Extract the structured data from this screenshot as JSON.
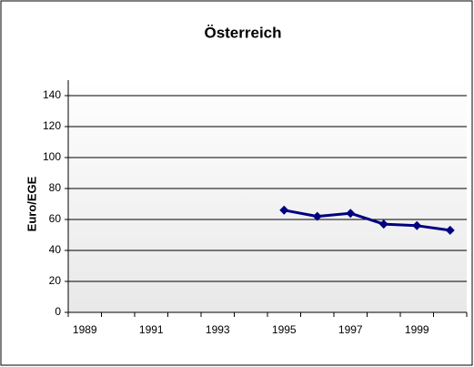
{
  "chart_data": {
    "type": "line",
    "title": "Österreich",
    "y_label": "Euro/EGE",
    "categories": [
      "1989",
      null,
      "1991",
      null,
      "1993",
      null,
      "1995",
      null,
      "1997",
      null,
      "1999",
      null
    ],
    "series": [
      {
        "name": "Österreich",
        "color": "#000080",
        "values": [
          null,
          null,
          null,
          null,
          null,
          null,
          66,
          62,
          64,
          57,
          56,
          53
        ]
      }
    ],
    "ylim": [
      0,
      150
    ],
    "yticks": [
      0,
      20,
      40,
      60,
      80,
      100,
      120,
      140
    ],
    "grid": true
  }
}
